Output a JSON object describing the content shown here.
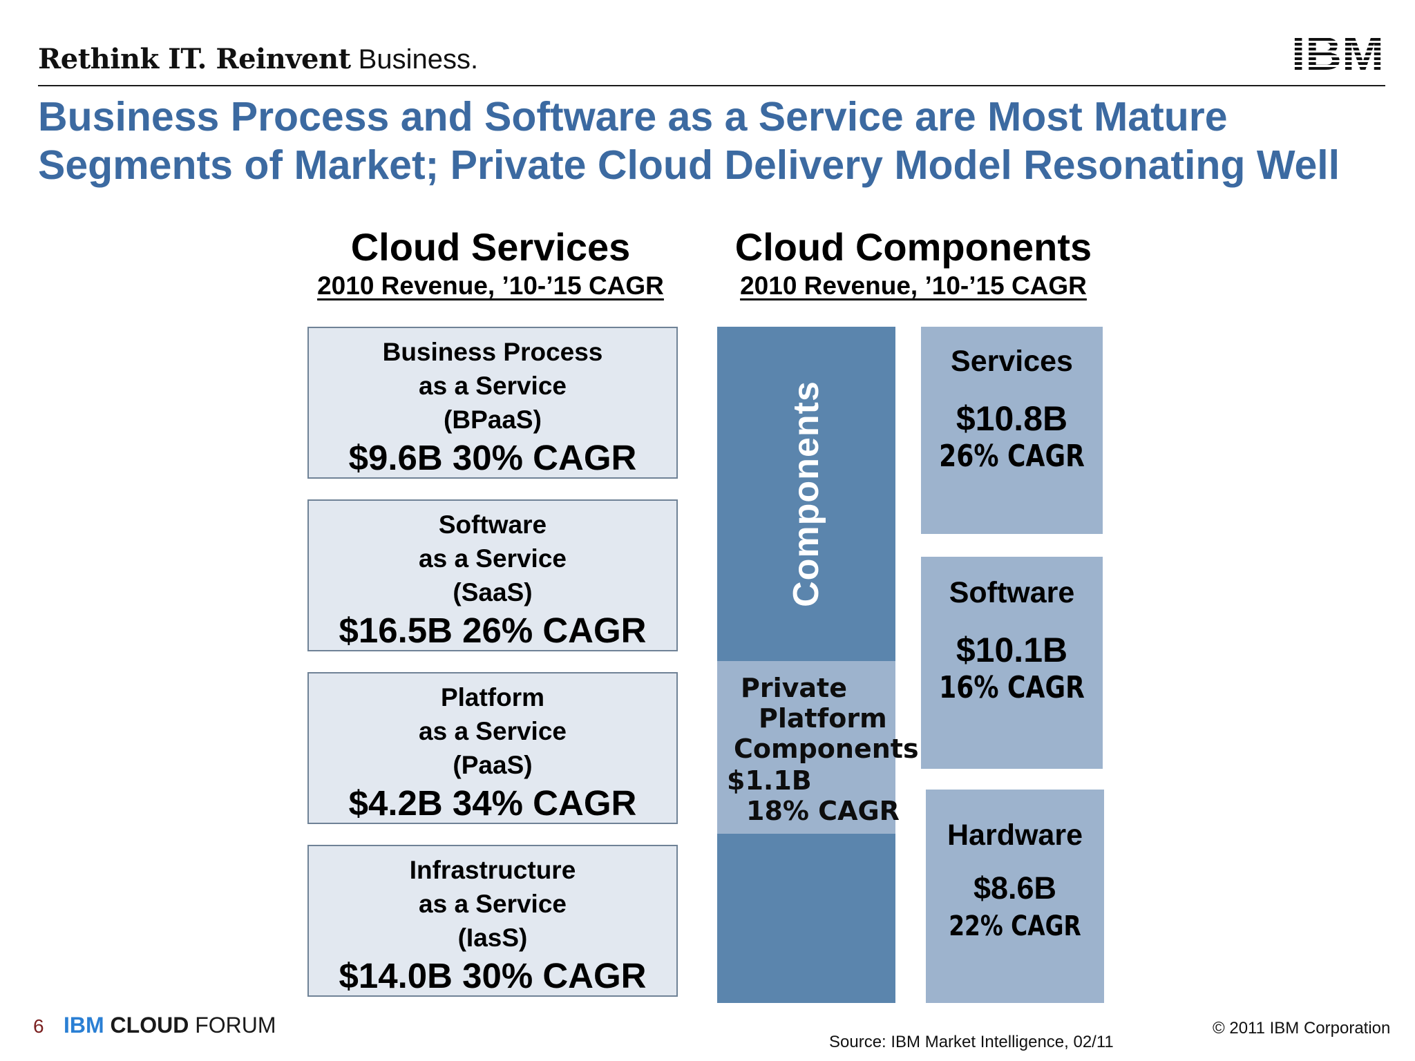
{
  "header": {
    "tagline_bold": "Rethink IT. Reinvent",
    "tagline_regular": " Business.",
    "logo_text": "IBM"
  },
  "title": {
    "line1": "Business Process and Software as a Service are Most Mature",
    "line2": "Segments of Market;  Private Cloud Delivery Model Resonating Well"
  },
  "cloud_services": {
    "heading": "Cloud Services",
    "subheading": "2010 Revenue, ’10-’15 CAGR",
    "boxes": [
      {
        "line1": "Business Process",
        "line2": "as a Service",
        "line3": "(BPaaS)",
        "figure": "$9.6B  30% CAGR"
      },
      {
        "line1": "Software",
        "line2": "as a Service",
        "line3": "(SaaS)",
        "figure": "$16.5B  26% CAGR"
      },
      {
        "line1": "Platform",
        "line2": "as a Service",
        "line3": "(PaaS)",
        "figure": "$4.2B  34% CAGR"
      },
      {
        "line1": "Infrastructure",
        "line2": "as a Service",
        "line3": "(IasS)",
        "figure": "$14.0B  30% CAGR"
      }
    ]
  },
  "cloud_components": {
    "heading": "Cloud Components",
    "subheading": "2010 Revenue, ’10-’15 CAGR",
    "vertical_label": "Components",
    "private_platform": {
      "line1": "Private",
      "line2": "Platform",
      "line3": "Components",
      "amount": "$1.1B",
      "cagr": "18% CAGR"
    },
    "segments": [
      {
        "name": "Services",
        "amount": "$10.8B",
        "cagr": "26% CAGR"
      },
      {
        "name": "Software",
        "amount": "$10.1B",
        "cagr": "16% CAGR"
      },
      {
        "name": "Hardware",
        "amount": "$8.6B",
        "cagr": "22% CAGR"
      }
    ]
  },
  "colors": {
    "title_blue": "#3c6aa1",
    "components_dark": "#5b85ad",
    "components_light": "#9db3cd",
    "service_box_fill": "#e2e8f0"
  },
  "footer": {
    "page_number": "6",
    "forum_ibm": "IBM",
    "forum_cloud": "CLOUD",
    "forum_rest": "FORUM",
    "source": "Source:  IBM Market Intelligence, 02/11",
    "copyright": "© 2011 IBM Corporation"
  }
}
